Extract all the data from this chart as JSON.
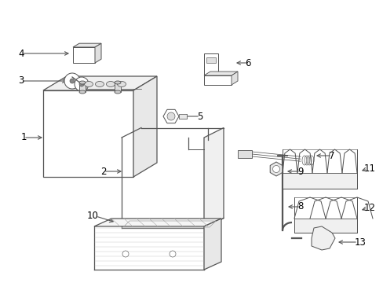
{
  "background_color": "#ffffff",
  "line_color": "#555555",
  "text_color": "#000000",
  "figsize": [
    4.89,
    3.6
  ],
  "dpi": 100
}
